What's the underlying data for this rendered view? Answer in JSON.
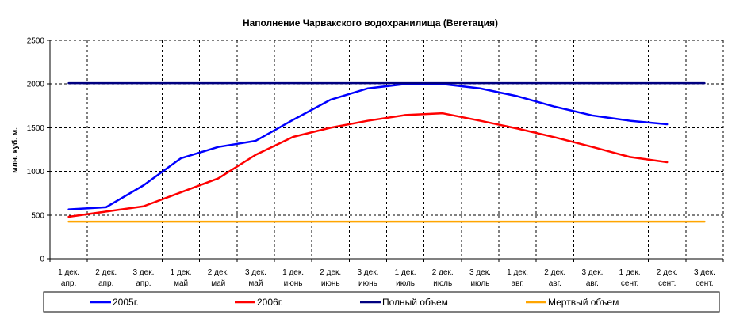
{
  "chart_data": {
    "type": "line",
    "title": "Наполнение Чарвакского водохранилища  (Вегетация)",
    "xlabel": "",
    "ylabel": "млн. куб. м.",
    "ylim": [
      0,
      2500
    ],
    "yticks": [
      0,
      500,
      1000,
      1500,
      2000,
      2500
    ],
    "grid": true,
    "legend_position": "bottom",
    "categories": [
      [
        "1 дек.",
        "апр."
      ],
      [
        "2 дек.",
        "апр."
      ],
      [
        "3 дек.",
        "апр."
      ],
      [
        "1 дек.",
        "май"
      ],
      [
        "2 дек.",
        "май"
      ],
      [
        "3 дек.",
        "май"
      ],
      [
        "1 дек.",
        "июнь"
      ],
      [
        "2 дек.",
        "июнь"
      ],
      [
        "3 дек.",
        "июнь"
      ],
      [
        "1 дек.",
        "июль"
      ],
      [
        "2 дек.",
        "июль"
      ],
      [
        "3 дек.",
        "июль"
      ],
      [
        "1 дек.",
        "авг."
      ],
      [
        "2 дек.",
        "авг."
      ],
      [
        "3 дек.",
        "авг."
      ],
      [
        "1 дек.",
        "сент."
      ],
      [
        "2 дек.",
        "сент."
      ],
      [
        "3 дек.",
        "сент."
      ]
    ],
    "series": [
      {
        "name": "2005г.",
        "color": "#0000ff",
        "values": [
          565,
          590,
          840,
          1150,
          1280,
          1350,
          1590,
          1820,
          1950,
          2000,
          2000,
          1950,
          1860,
          1740,
          1640,
          1580,
          1540,
          null
        ]
      },
      {
        "name": "2006г.",
        "color": "#ff0000",
        "values": [
          480,
          540,
          600,
          760,
          920,
          1190,
          1395,
          1500,
          1580,
          1645,
          1665,
          1580,
          1490,
          1390,
          1280,
          1165,
          1105,
          null
        ]
      },
      {
        "name": "Полный объем",
        "color": "#000080",
        "values": [
          2010,
          2010,
          2010,
          2010,
          2010,
          2010,
          2010,
          2010,
          2010,
          2010,
          2010,
          2010,
          2010,
          2010,
          2010,
          2010,
          2010,
          2010
        ]
      },
      {
        "name": "Мертвый объем",
        "color": "#ffa500",
        "values": [
          425,
          425,
          425,
          425,
          425,
          425,
          425,
          425,
          425,
          425,
          425,
          425,
          425,
          425,
          425,
          425,
          425,
          425
        ]
      }
    ]
  }
}
